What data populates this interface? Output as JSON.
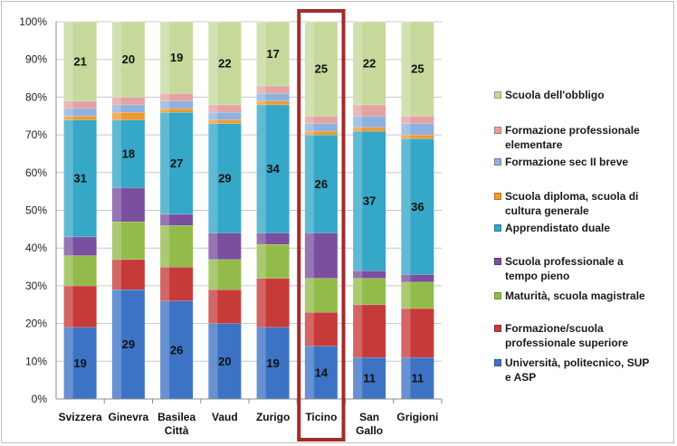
{
  "chart_data": {
    "type": "stacked-bar-100",
    "categories": [
      [
        "Svizzera"
      ],
      [
        "Ginevra"
      ],
      [
        "Basilea",
        "Città"
      ],
      [
        "Vaud"
      ],
      [
        "Zurigo"
      ],
      [
        "Ticino"
      ],
      [
        "San",
        "Gallo"
      ],
      [
        "Grigioni"
      ]
    ],
    "highlighted_category": "Ticino",
    "highlight_color": "#a12b2b",
    "yticks": [
      "0%",
      "10%",
      "20%",
      "30%",
      "40%",
      "50%",
      "60%",
      "70%",
      "80%",
      "90%",
      "100%"
    ],
    "ylim": [
      0,
      100
    ],
    "grid": true,
    "legend_position": "right",
    "series": [
      {
        "name": "Università, politecnico, SUP e ASP",
        "color": "#3d73c4",
        "values": [
          19,
          29,
          26,
          20,
          19,
          14,
          11,
          11
        ],
        "show_labels": true
      },
      {
        "name": "Formazione/scuola professionale superiore",
        "color": "#c73a3a",
        "values": [
          11,
          8,
          9,
          9,
          13,
          9,
          14,
          13
        ],
        "show_labels": false
      },
      {
        "name": "Maturità, scuola magistrale",
        "color": "#93bb4a",
        "values": [
          8,
          10,
          11,
          8,
          9,
          9,
          7,
          7
        ],
        "show_labels": false
      },
      {
        "name": "Scuola professionale a tempo pieno",
        "color": "#7a4f9e",
        "values": [
          5,
          9,
          3,
          7,
          3,
          12,
          2,
          2
        ],
        "show_labels": false
      },
      {
        "name": "Apprendistato duale",
        "color": "#35a7c7",
        "values": [
          31,
          18,
          27,
          29,
          34,
          26,
          37,
          36
        ],
        "show_labels": true
      },
      {
        "name": "Scuola diploma, scuola di cultura generale",
        "color": "#f09a2e",
        "values": [
          1,
          2,
          1,
          1,
          1,
          1,
          1,
          1
        ],
        "show_labels": false
      },
      {
        "name": "Formazione sec II breve",
        "color": "#8eb1de",
        "values": [
          2,
          2,
          2,
          2,
          2,
          2,
          3,
          3
        ],
        "show_labels": false
      },
      {
        "name": "Formazione professionale elementare",
        "color": "#e3a3a3",
        "values": [
          2,
          2,
          2,
          2,
          2,
          2,
          3,
          2
        ],
        "show_labels": false
      },
      {
        "name": "Scuola dell'obbligo",
        "color": "#c6d99b",
        "values": [
          21,
          20,
          19,
          22,
          17,
          25,
          22,
          25
        ],
        "show_labels": true
      }
    ]
  },
  "legend": {
    "items": [
      {
        "lines": [
          "Scuola dell'obbligo"
        ],
        "color": "#c6d99b"
      },
      {
        "lines": [
          "Formazione professionale",
          "elementare"
        ],
        "color": "#e3a3a3"
      },
      {
        "lines": [
          "Formazione sec II breve"
        ],
        "color": "#8eb1de"
      },
      {
        "lines": [
          "Scuola diploma, scuola di",
          "cultura generale"
        ],
        "color": "#f09a2e"
      },
      {
        "lines": [
          "Apprendistato duale"
        ],
        "color": "#35a7c7"
      },
      {
        "lines": [
          "Scuola professionale a",
          "tempo pieno"
        ],
        "color": "#7a4f9e"
      },
      {
        "lines": [
          "Maturità, scuola magistrale"
        ],
        "color": "#93bb4a"
      },
      {
        "lines": [
          "Formazione/scuola",
          "professionale superiore"
        ],
        "color": "#c73a3a"
      },
      {
        "lines": [
          "Università, politecnico, SUP",
          "e ASP"
        ],
        "color": "#3d73c4"
      }
    ]
  }
}
